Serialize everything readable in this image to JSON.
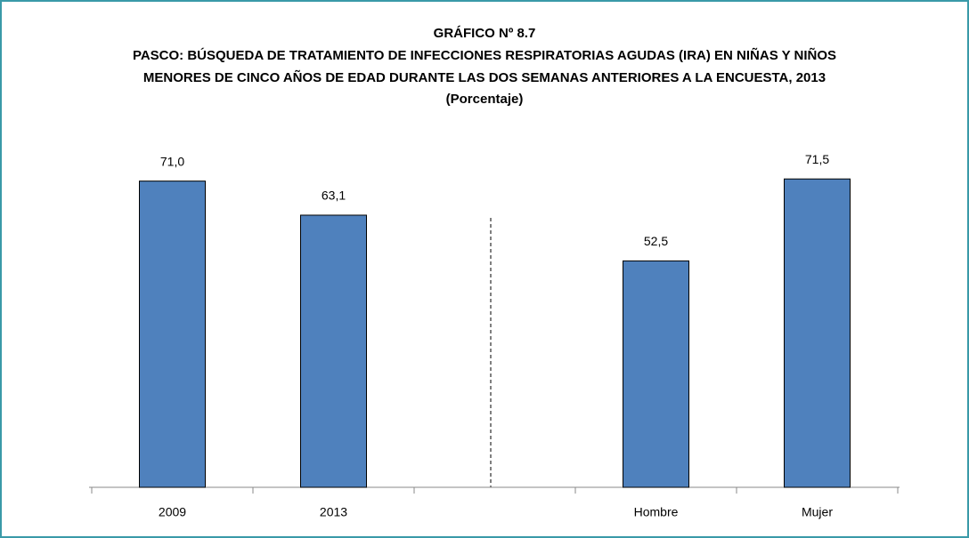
{
  "chart_data": {
    "type": "bar",
    "title": "GRÁFICO Nº 8.7",
    "subtitle": [
      "PASCO:  BÚSQUEDA DE TRATAMIENTO DE INFECCIONES RESPIRATORIAS AGUDAS (IRA) EN NIÑAS Y NIÑOS",
      "MENORES DE CINCO AÑOS DE EDAD DURANTE LAS DOS SEMANAS ANTERIORES A LA ENCUESTA, 2013",
      "(Porcentaje)"
    ],
    "categories": [
      "2009",
      "2013",
      null,
      "Hombre",
      "Mujer"
    ],
    "values": [
      71.0,
      63.1,
      null,
      52.5,
      71.5
    ],
    "value_labels": [
      "71,0",
      "63,1",
      null,
      "52,5",
      "71,5"
    ],
    "color": "#4f81bd",
    "ylim": [
      0,
      80
    ]
  }
}
